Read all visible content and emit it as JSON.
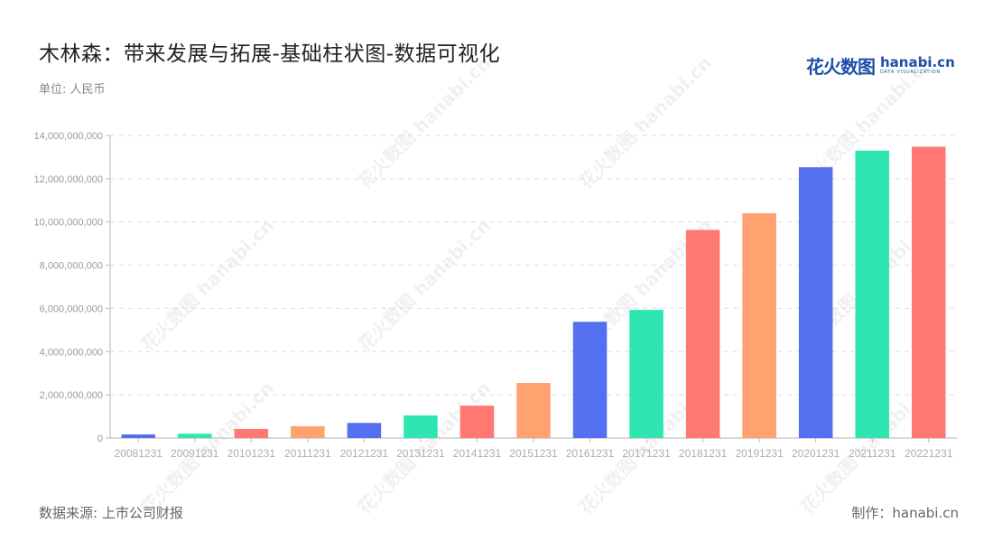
{
  "header": {
    "title": "木林森：带来发展与拓展-基础柱状图-数据可视化",
    "unit": "单位: 人民币"
  },
  "logo": {
    "cn": "花火数图",
    "en": "hanabi.cn",
    "tagline": "DATA VISUALIZATION"
  },
  "footer": {
    "source": "数据来源: 上市公司财报",
    "credit": "制作：hanabi.cn"
  },
  "watermark": "花火数图 hanabi.cn",
  "chart_data": {
    "type": "bar",
    "title": "木林森：带来发展与拓展-基础柱状图-数据可视化",
    "xlabel": "",
    "ylabel": "单位: 人民币",
    "categories": [
      "20081231",
      "20091231",
      "20101231",
      "20111231",
      "20121231",
      "20131231",
      "20141231",
      "20151231",
      "20161231",
      "20171231",
      "20181231",
      "20191231",
      "20201231",
      "20211231",
      "20221231"
    ],
    "values": [
      170000000,
      200000000,
      420000000,
      550000000,
      700000000,
      1050000000,
      1500000000,
      2550000000,
      5380000000,
      5930000000,
      9630000000,
      10400000000,
      12530000000,
      13300000000,
      13480000000
    ],
    "colors": [
      "#5470f0",
      "#2fe6b2",
      "#ff7872",
      "#ffa26f",
      "#5470f0",
      "#2fe6b2",
      "#ff7872",
      "#ffa26f",
      "#5470f0",
      "#2fe6b2",
      "#ff7872",
      "#ffa26f",
      "#5470f0",
      "#2fe6b2",
      "#ff7872"
    ],
    "ylim": [
      0,
      14000000000
    ],
    "yticks": [
      0,
      2000000000,
      4000000000,
      6000000000,
      8000000000,
      10000000000,
      12000000000,
      14000000000
    ],
    "ytick_labels": [
      "0",
      "2,000,000,000",
      "4,000,000,000",
      "6,000,000,000",
      "8,000,000,000",
      "10,000,000,000",
      "12,000,000,000",
      "14,000,000,000"
    ],
    "grid": true,
    "legend": "none"
  }
}
